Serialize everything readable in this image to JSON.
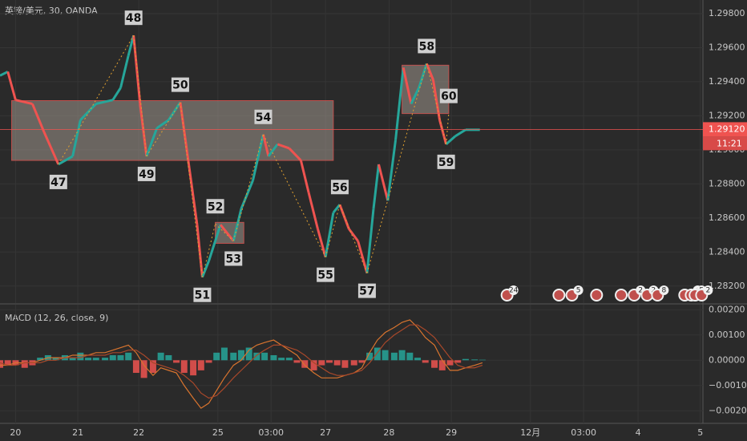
{
  "chart_data": [
    {
      "type": "line",
      "title": "英镑/美元, 30, OANDA",
      "x": [
        0,
        6,
        12,
        25,
        34,
        45,
        56,
        62,
        74,
        87,
        93,
        99,
        103,
        108,
        113,
        121,
        130,
        139,
        146,
        152,
        156,
        161,
        166,
        170,
        180,
        186,
        195,
        203,
        207,
        214,
        223,
        232,
        238,
        245,
        251,
        257,
        262,
        269,
        276,
        283,
        288,
        292,
        299,
        305,
        311,
        317,
        323,
        329,
        334,
        339,
        344,
        351,
        359,
        370
      ],
      "series": [
        {
          "values": [
            1.29436,
            1.29459,
            1.29293,
            1.2927,
            1.29104,
            1.28915,
            1.28962,
            1.29175,
            1.2927,
            1.29293,
            1.29364,
            1.29554,
            1.29672,
            1.2927,
            1.28962,
            1.29128,
            1.29175,
            1.29279,
            1.28891,
            1.2856,
            1.28252,
            1.28347,
            1.28465,
            1.2856,
            1.28465,
            1.28654,
            1.2882,
            1.2909,
            1.28962,
            1.29033,
            1.29009,
            1.28938,
            1.28749,
            1.28536,
            1.2837,
            1.28631,
            1.28678,
            1.28536,
            1.28465,
            1.28276,
            1.28654,
            1.28915,
            1.28702,
            1.29057,
            1.29483,
            1.2927,
            1.29364,
            1.29506,
            1.29412,
            1.29175,
            1.29033,
            1.2908,
            1.29118,
            1.29118
          ]
        }
      ],
      "up_color": "#26a69a",
      "down_color": "#ef5350",
      "boxes": [
        {
          "x": [
            9,
            257
          ],
          "y": [
            1.28938,
            1.29289
          ]
        },
        {
          "x": [
            166,
            188
          ],
          "y": [
            1.28451,
            1.28574
          ]
        },
        {
          "x": [
            310,
            346
          ],
          "y": [
            1.29213,
            1.29497
          ]
        }
      ],
      "waves": [
        {
          "label": "47",
          "x": 45,
          "y": 1.28915
        },
        {
          "label": "48",
          "x": 103,
          "y": 1.29672
        },
        {
          "label": "49",
          "x": 113,
          "y": 1.28962
        },
        {
          "label": "50",
          "x": 139,
          "y": 1.29279
        },
        {
          "label": "51",
          "x": 156,
          "y": 1.28252
        },
        {
          "label": "52",
          "x": 166,
          "y": 1.28565
        },
        {
          "label": "53",
          "x": 180,
          "y": 1.28465
        },
        {
          "label": "54",
          "x": 203,
          "y": 1.2909
        },
        {
          "label": "55",
          "x": 251,
          "y": 1.2837
        },
        {
          "label": "56",
          "x": 262,
          "y": 1.28678
        },
        {
          "label": "57",
          "x": 283,
          "y": 1.28276
        },
        {
          "label": "58",
          "x": 329,
          "y": 1.29506
        },
        {
          "label": "59",
          "x": 344,
          "y": 1.29033
        },
        {
          "label": "60",
          "x": 346,
          "y": 1.29213
        }
      ],
      "last_price": {
        "value": 1.2912,
        "label": "1.29120"
      },
      "countdown": "11:21",
      "events": [
        {
          "x": 391,
          "count": 24
        },
        {
          "x": 431
        },
        {
          "x": 441,
          "count": 5
        },
        {
          "x": 460
        },
        {
          "x": 479
        },
        {
          "x": 489,
          "count": 2
        },
        {
          "x": 499,
          "count": 2
        },
        {
          "x": 507,
          "count": 8
        },
        {
          "x": 528
        },
        {
          "x": 533,
          "count": 4
        },
        {
          "x": 536,
          "count": 5
        },
        {
          "x": 541,
          "count": 2
        }
      ],
      "xlim": [
        0,
        542
      ],
      "xticks": [
        {
          "value": 12,
          "label": "20"
        },
        {
          "value": 60,
          "label": "21"
        },
        {
          "value": 107,
          "label": "22"
        },
        {
          "value": 168,
          "label": "25"
        },
        {
          "value": 209,
          "label": "03:00"
        },
        {
          "value": 251,
          "label": "27"
        },
        {
          "value": 300,
          "label": "28"
        },
        {
          "value": 348,
          "label": "29"
        },
        {
          "value": 409,
          "label": "12月"
        },
        {
          "value": 450,
          "label": "03:00"
        },
        {
          "value": 492,
          "label": "4"
        },
        {
          "value": 540,
          "label": "5"
        }
      ],
      "ylim": [
        1.281,
        1.2988
      ],
      "yticks": [
        {
          "value": 1.298,
          "label": "1.29800"
        },
        {
          "value": 1.296,
          "label": "1.29600"
        },
        {
          "value": 1.294,
          "label": "1.29400"
        },
        {
          "value": 1.292,
          "label": "1.29200"
        },
        {
          "value": 1.29,
          "label": "1.29000"
        },
        {
          "value": 1.288,
          "label": "1.28800"
        },
        {
          "value": 1.286,
          "label": "1.28600"
        },
        {
          "value": 1.284,
          "label": "1.28400"
        },
        {
          "value": 1.282,
          "label": "1.28200"
        }
      ],
      "grid": true
    },
    {
      "type": "macd",
      "title": "MACD (12, 26, close, 9)",
      "x": [
        0,
        6,
        12,
        19,
        25,
        31,
        37,
        43,
        50,
        56,
        62,
        68,
        74,
        81,
        87,
        93,
        99,
        105,
        111,
        118,
        124,
        130,
        136,
        142,
        149,
        155,
        161,
        167,
        173,
        180,
        186,
        192,
        198,
        204,
        211,
        217,
        223,
        229,
        235,
        242,
        248,
        254,
        260,
        266,
        273,
        279,
        285,
        291,
        297,
        304,
        310,
        316,
        322,
        328,
        335,
        341,
        347,
        353,
        359,
        366,
        372
      ],
      "histogram": {
        "up_color": "#26a69a",
        "down_color": "#ef5350",
        "values": [
          -0.0003,
          -0.0002,
          -0.0002,
          -0.0003,
          -0.0002,
          0.0001,
          0.0002,
          0.0001,
          0.0002,
          0.0001,
          0.0003,
          0.0001,
          0.0001,
          0.0001,
          0.0002,
          0.0002,
          0.0003,
          -0.0005,
          -0.0007,
          -0.0005,
          0.0003,
          0.0002,
          -0.0001,
          -0.0005,
          -0.0006,
          -0.0004,
          -0.0001,
          0.0003,
          0.0005,
          0.0003,
          0.0004,
          0.0005,
          0.0003,
          0.0003,
          0.0002,
          0.0001,
          0.0001,
          -0.0001,
          -0.0003,
          -0.0004,
          -0.0002,
          -0.0001,
          -0.0002,
          -0.0003,
          -0.0002,
          -0.0001,
          0.0003,
          0.0005,
          0.0004,
          0.0003,
          0.0004,
          0.0003,
          0.0001,
          -0.0001,
          -0.0003,
          -0.0004,
          -0.0002,
          -0.0001,
          5e-05,
          3e-05,
          2e-05
        ]
      },
      "series": [
        {
          "color": "#d9742e",
          "values": [
            -0.0002,
            -0.0002,
            -0.0001,
            -0.0001,
            -0.0001,
            0,
            0.0001,
            0.0001,
            0.0001,
            0.0002,
            0.0002,
            0.0002,
            0.0003,
            0.0003,
            0.0004,
            0.0005,
            0.0006,
            0.0003,
            -0.0002,
            -0.0006,
            -0.0003,
            -0.0004,
            -0.0005,
            -0.001,
            -0.0015,
            -0.0019,
            -0.0017,
            -0.0012,
            -0.0007,
            -0.0002,
            0,
            0.0004,
            0.0006,
            0.0007,
            0.0008,
            0.0006,
            0.0004,
            0.0002,
            -0.0002,
            -0.0005,
            -0.0007,
            -0.0007,
            -0.0007,
            -0.0006,
            -0.0005,
            -0.0003,
            0.0003,
            0.0008,
            0.0011,
            0.0013,
            0.0015,
            0.0016,
            0.0013,
            0.0009,
            0.0006,
            0,
            -0.0004,
            -0.0004,
            -0.0003,
            -0.0002,
            -0.0001
          ]
        },
        {
          "color": "#a8482a",
          "values": [
            -0.0001,
            -0.0002,
            -0.0002,
            -0.0001,
            -0.0001,
            -0.0001,
            0,
            0,
            0.0001,
            0.0001,
            0.0001,
            0.0002,
            0.0002,
            0.0002,
            0.0003,
            0.0003,
            0.0004,
            0.0004,
            0.0002,
            -0.0001,
            -0.0002,
            -0.0003,
            -0.0004,
            -0.0006,
            -0.0009,
            -0.0013,
            -0.0015,
            -0.0014,
            -0.0011,
            -0.0007,
            -0.0004,
            -0.0001,
            0.0002,
            0.0004,
            0.0006,
            0.0006,
            0.0005,
            0.0004,
            0.0002,
            -0.0001,
            -0.0003,
            -0.0005,
            -0.0006,
            -0.0006,
            -0.0005,
            -0.0004,
            -0.0001,
            0.0003,
            0.0007,
            0.001,
            0.0012,
            0.0014,
            0.0014,
            0.0012,
            0.0009,
            0.0005,
            0.0001,
            -0.0002,
            -0.0003,
            -0.0003,
            -0.0002
          ]
        }
      ],
      "ylim": [
        -0.0025,
        0.0022
      ],
      "yticks": [
        {
          "value": 0.002,
          "label": "0.00200"
        },
        {
          "value": 0.001,
          "label": "0.00100"
        },
        {
          "value": 0,
          "label": "0.00000"
        },
        {
          "value": -0.001,
          "label": "−0.00100"
        },
        {
          "value": -0.002,
          "label": "−0.00200"
        }
      ]
    }
  ]
}
